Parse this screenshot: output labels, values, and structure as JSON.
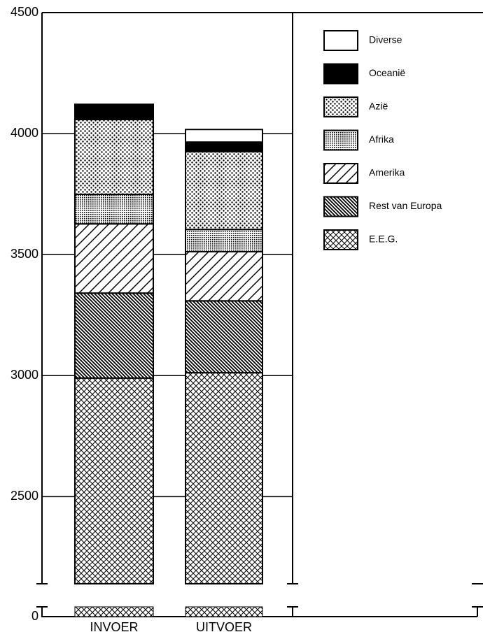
{
  "chart_data": {
    "type": "stacked-bar",
    "categories": [
      "INVOER",
      "UITVOER"
    ],
    "series": [
      {
        "name": "E.E.G.",
        "pattern": "crosshatch",
        "values": [
          2990,
          3012
        ]
      },
      {
        "name": "Rest van Europa",
        "pattern": "backslash",
        "values": [
          351,
          297
        ]
      },
      {
        "name": "Amerika",
        "pattern": "slash",
        "values": [
          286,
          203
        ]
      },
      {
        "name": "Afrika",
        "pattern": "fine-dots",
        "values": [
          122,
          92
        ]
      },
      {
        "name": "Azië",
        "pattern": "dots",
        "values": [
          309,
          321
        ]
      },
      {
        "name": "Oceanië",
        "pattern": "solid",
        "values": [
          63,
          40
        ]
      },
      {
        "name": "Diverse",
        "pattern": "none",
        "values": [
          0,
          52
        ]
      }
    ],
    "ylim": [
      2140,
      4500
    ],
    "yticks": [
      0,
      2500,
      3000,
      3500,
      4000,
      4500
    ],
    "axis_break": true,
    "grid": true
  }
}
